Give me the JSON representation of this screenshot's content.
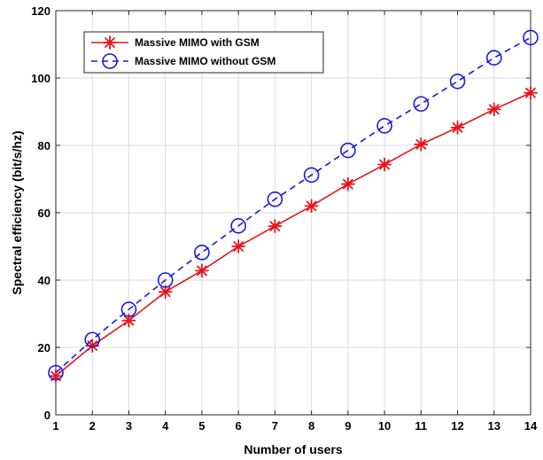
{
  "chart_data": {
    "type": "line",
    "title": "",
    "xlabel": "Number of users",
    "ylabel": "Spectral efficiency (bit/s/hz)",
    "xlim": [
      1,
      14
    ],
    "ylim": [
      0,
      120
    ],
    "xticks": [
      1,
      2,
      3,
      4,
      5,
      6,
      7,
      8,
      9,
      10,
      11,
      12,
      13,
      14
    ],
    "yticks": [
      0,
      20,
      40,
      60,
      80,
      100,
      120
    ],
    "grid": true,
    "legend_position": "top-left",
    "x": [
      1,
      2,
      3,
      4,
      5,
      6,
      7,
      8,
      9,
      10,
      11,
      12,
      13,
      14
    ],
    "series": [
      {
        "name": "Massive MIMO with GSM",
        "values": [
          11.5,
          20.5,
          28.0,
          36.5,
          42.8,
          50.0,
          56.0,
          62.0,
          68.5,
          74.3,
          80.3,
          85.3,
          90.7,
          95.6
        ],
        "color": "#e8141b",
        "line_style": "solid",
        "marker": "asterisk"
      },
      {
        "name": "Massive MIMO without GSM",
        "values": [
          12.5,
          22.3,
          31.3,
          40.0,
          48.2,
          56.1,
          64.0,
          71.2,
          78.5,
          85.8,
          92.3,
          99.0,
          106.0,
          112.0
        ],
        "color": "#1a1adb",
        "line_style": "dashed",
        "marker": "circle"
      }
    ]
  }
}
